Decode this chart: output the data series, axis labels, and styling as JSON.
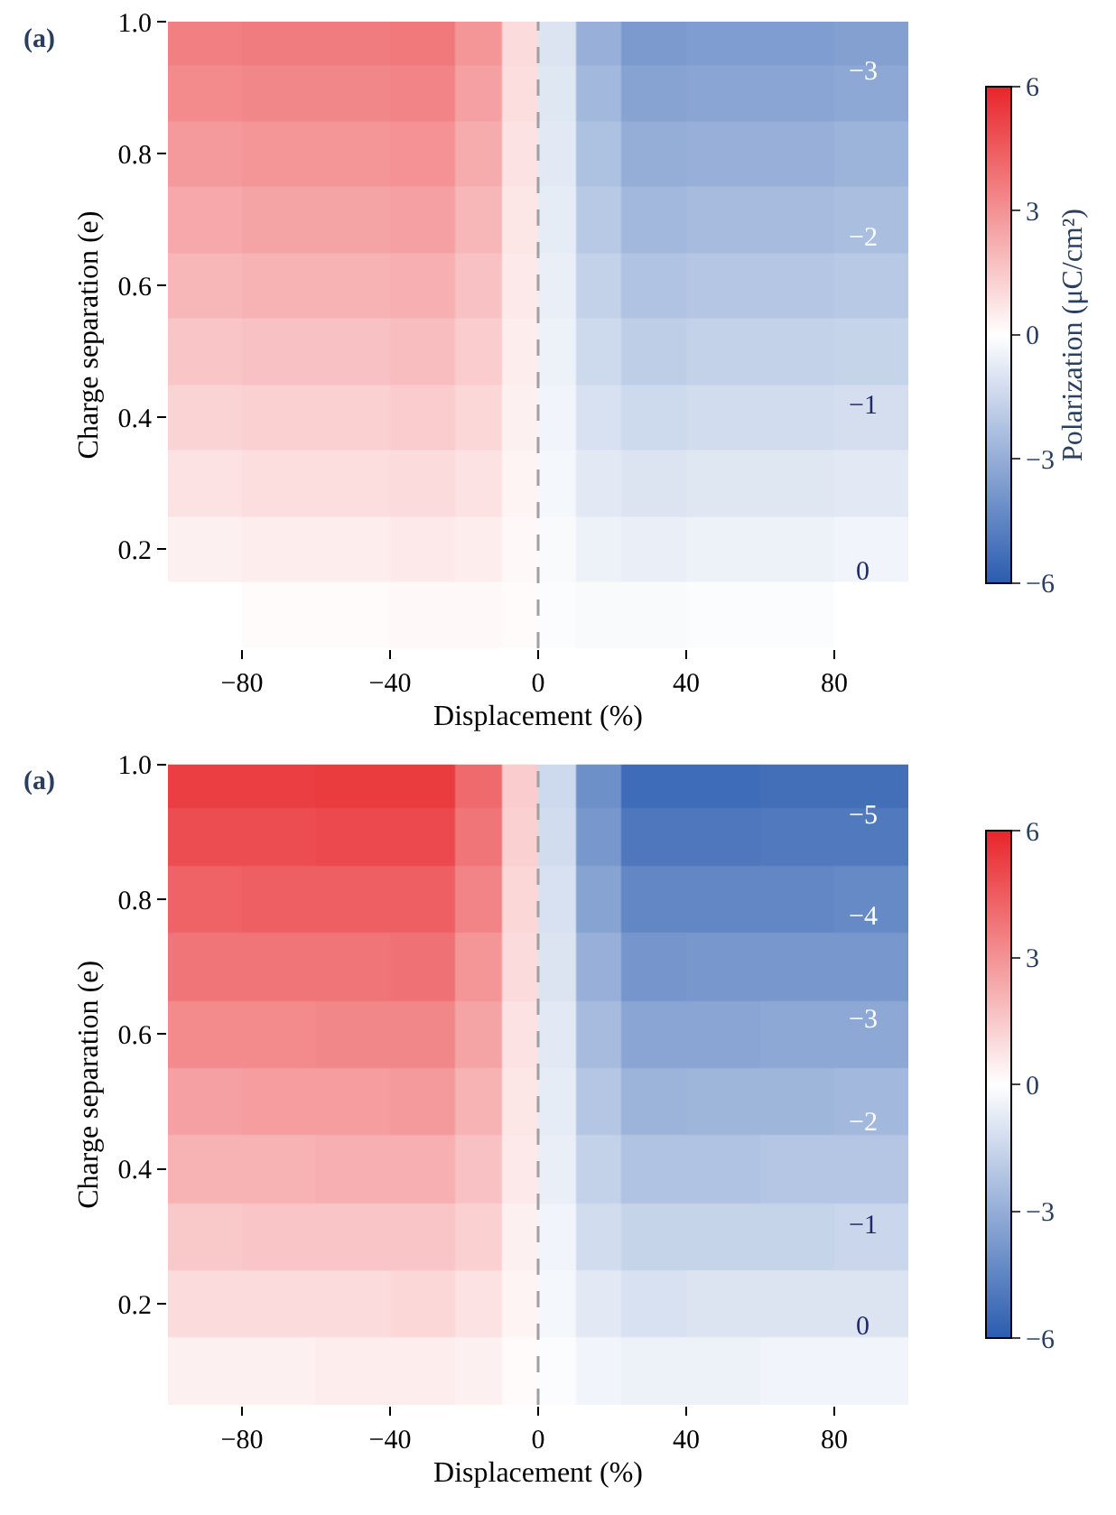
{
  "chart_data": [
    {
      "type": "heatmap",
      "title": "(a)",
      "xlabel": "Displacement (%)",
      "ylabel": "Charge separation (e)",
      "clabel": "Polarization (μC/cm²)",
      "x": [
        -90,
        -70,
        -50,
        -30,
        -15,
        -5,
        5,
        15,
        30,
        50,
        70,
        90
      ],
      "y": [
        0.1,
        0.2,
        0.3,
        0.4,
        0.5,
        0.6,
        0.7,
        0.8,
        0.9,
        0.97
      ],
      "cells": [
        [
          0.0,
          0.1,
          0.1,
          0.2,
          0.2,
          0.1,
          -0.1,
          -0.2,
          -0.2,
          -0.1,
          -0.1,
          0.0
        ],
        [
          0.4,
          0.5,
          0.5,
          0.6,
          0.5,
          0.2,
          -0.2,
          -0.5,
          -0.6,
          -0.5,
          -0.5,
          -0.4
        ],
        [
          0.8,
          0.9,
          0.9,
          1.0,
          0.8,
          0.3,
          -0.3,
          -0.8,
          -1.0,
          -0.9,
          -0.9,
          -0.8
        ],
        [
          1.2,
          1.3,
          1.3,
          1.4,
          1.1,
          0.4,
          -0.4,
          -1.1,
          -1.4,
          -1.3,
          -1.3,
          -1.2
        ],
        [
          1.6,
          1.7,
          1.7,
          1.8,
          1.4,
          0.5,
          -0.5,
          -1.4,
          -1.8,
          -1.7,
          -1.7,
          -1.6
        ],
        [
          2.0,
          2.1,
          2.1,
          2.2,
          1.7,
          0.6,
          -0.6,
          -1.7,
          -2.2,
          -2.1,
          -2.1,
          -2.0
        ],
        [
          2.4,
          2.5,
          2.5,
          2.6,
          2.0,
          0.7,
          -0.7,
          -2.0,
          -2.6,
          -2.5,
          -2.5,
          -2.4
        ],
        [
          2.8,
          2.9,
          2.9,
          3.0,
          2.3,
          0.8,
          -0.8,
          -2.3,
          -3.0,
          -2.9,
          -2.9,
          -2.8
        ],
        [
          3.2,
          3.3,
          3.3,
          3.4,
          2.6,
          0.9,
          -0.9,
          -2.6,
          -3.4,
          -3.3,
          -3.3,
          -3.2
        ],
        [
          3.5,
          3.6,
          3.6,
          3.7,
          2.9,
          1.0,
          -1.0,
          -2.9,
          -3.7,
          -3.6,
          -3.6,
          -3.5
        ]
      ],
      "clim": [
        -6,
        6
      ],
      "cticks": [
        -6,
        -3,
        0,
        3,
        6
      ],
      "xlim": [
        -100,
        100
      ],
      "ylim": [
        0.05,
        1.0
      ],
      "xticks": [
        -80,
        -40,
        0,
        40,
        80
      ],
      "yticks": [
        0.2,
        0.4,
        0.6,
        0.8,
        {
          "value": 1.0,
          "label": "1.0"
        }
      ],
      "ref_lines": [
        {
          "axis": "x",
          "value": 0,
          "color": "#a0a0a0",
          "line_style": "dashed"
        }
      ],
      "annotations": [
        "−3",
        "−2",
        "−1",
        "0"
      ]
    },
    {
      "type": "heatmap",
      "title": "(a)",
      "xlabel": "Displacement (%)",
      "ylabel": "Charge separation (e)",
      "x": [
        -90,
        -70,
        -50,
        -30,
        -15,
        -5,
        5,
        15,
        30,
        50,
        70,
        90
      ],
      "y": [
        0.1,
        0.2,
        0.3,
        0.4,
        0.5,
        0.6,
        0.7,
        0.8,
        0.9,
        0.97
      ],
      "cells": [
        [
          0.4,
          0.4,
          0.5,
          0.5,
          0.4,
          0.1,
          -0.1,
          -0.4,
          -0.5,
          -0.5,
          -0.4,
          -0.4
        ],
        [
          1.0,
          1.0,
          1.0,
          1.1,
          0.8,
          0.3,
          -0.3,
          -0.8,
          -1.1,
          -1.0,
          -1.0,
          -1.0
        ],
        [
          1.5,
          1.6,
          1.6,
          1.6,
          1.3,
          0.4,
          -0.4,
          -1.3,
          -1.6,
          -1.6,
          -1.6,
          -1.5
        ],
        [
          2.1,
          2.1,
          2.2,
          2.2,
          1.7,
          0.6,
          -0.6,
          -1.7,
          -2.2,
          -2.2,
          -2.1,
          -2.1
        ],
        [
          2.6,
          2.7,
          2.7,
          2.8,
          2.1,
          0.7,
          -0.7,
          -2.1,
          -2.8,
          -2.7,
          -2.7,
          -2.6
        ],
        [
          3.2,
          3.2,
          3.3,
          3.3,
          2.5,
          0.8,
          -0.8,
          -2.5,
          -3.3,
          -3.3,
          -3.2,
          -3.2
        ],
        [
          3.8,
          3.8,
          3.8,
          3.9,
          2.9,
          1.0,
          -1.0,
          -2.9,
          -3.9,
          -3.8,
          -3.8,
          -3.8
        ],
        [
          4.3,
          4.4,
          4.4,
          4.4,
          3.4,
          1.1,
          -1.1,
          -3.4,
          -4.4,
          -4.4,
          -4.4,
          -4.3
        ],
        [
          4.9,
          4.9,
          5.0,
          5.0,
          3.8,
          1.3,
          -1.3,
          -3.8,
          -5.0,
          -5.0,
          -4.9,
          -4.9
        ],
        [
          5.3,
          5.3,
          5.4,
          5.4,
          4.1,
          1.4,
          -1.4,
          -4.1,
          -5.4,
          -5.4,
          -5.3,
          -5.3
        ]
      ],
      "clim": [
        -6,
        6
      ],
      "cticks": [
        -6,
        -3,
        0,
        3,
        6
      ],
      "xlim": [
        -100,
        100
      ],
      "ylim": [
        0.05,
        1.0
      ],
      "xticks": [
        -80,
        -40,
        0,
        40,
        80
      ],
      "yticks": [
        0.2,
        0.4,
        0.6,
        0.8,
        {
          "value": 1.0,
          "label": "1.0"
        }
      ],
      "ref_lines": [
        {
          "axis": "x",
          "value": 0,
          "color": "#a0a0a0",
          "line_style": "dashed"
        }
      ],
      "annotations": [
        "−5",
        "−4",
        "−3",
        "−2",
        "−1",
        "0"
      ]
    }
  ]
}
